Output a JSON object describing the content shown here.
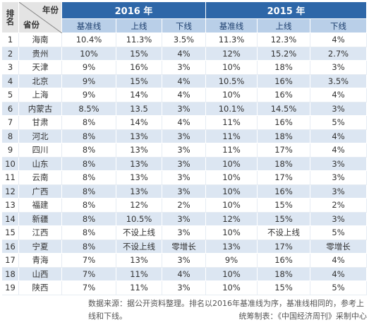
{
  "header": {
    "rank_label": "排名",
    "year_label": "年份",
    "province_label": "省份",
    "years": [
      "2016 年",
      "2015 年"
    ],
    "subheaders": [
      "基准线",
      "上线",
      "下线",
      "基准线",
      "上线",
      "下线"
    ]
  },
  "table": {
    "rows": [
      [
        1,
        "海南",
        "10.4%",
        "11.3%",
        "3.5%",
        "11.3%",
        "12.3%",
        "4%"
      ],
      [
        2,
        "贵州",
        "10%",
        "15%",
        "4%",
        "12%",
        "15.2%",
        "2.7%"
      ],
      [
        3,
        "天津",
        "9%",
        "16%",
        "3%",
        "10%",
        "18%",
        "3%"
      ],
      [
        4,
        "北京",
        "9%",
        "15%",
        "4%",
        "10.5%",
        "16%",
        "3.5%"
      ],
      [
        5,
        "上海",
        "9%",
        "14%",
        "4%",
        "10%",
        "16%",
        "4%"
      ],
      [
        6,
        "内蒙古",
        "8.5%",
        "13.5",
        "3%",
        "10.1%",
        "14.5%",
        "3%"
      ],
      [
        7,
        "甘肃",
        "8%",
        "14%",
        "4%",
        "11%",
        "16%",
        "5%"
      ],
      [
        8,
        "河北",
        "8%",
        "13%",
        "3%",
        "11%",
        "18%",
        "4%"
      ],
      [
        9,
        "四川",
        "8%",
        "13%",
        "3%",
        "11%",
        "17%",
        "4%"
      ],
      [
        10,
        "山东",
        "8%",
        "13%",
        "3%",
        "10%",
        "18%",
        "3%"
      ],
      [
        11,
        "云南",
        "8%",
        "13%",
        "3%",
        "10%",
        "17%",
        "3%"
      ],
      [
        12,
        "广西",
        "8%",
        "13%",
        "3%",
        "10%",
        "16%",
        "3%"
      ],
      [
        13,
        "福建",
        "8%",
        "12%",
        "2%",
        "10%",
        "15%",
        "2%"
      ],
      [
        14,
        "新疆",
        "8%",
        "10.5%",
        "3%",
        "12%",
        "15%",
        "3%"
      ],
      [
        15,
        "江西",
        "8%",
        "不设上线",
        "3%",
        "10%",
        "不设上线",
        "5%"
      ],
      [
        16,
        "宁夏",
        "8%",
        "不设上线",
        "零增长",
        "13%",
        "17%",
        "零增长"
      ],
      [
        17,
        "青海",
        "7%",
        "13%",
        "3%",
        "9%",
        "16%",
        "4%"
      ],
      [
        18,
        "山西",
        "7%",
        "11%",
        "4%",
        "10%",
        "18%",
        "4%"
      ],
      [
        19,
        "陕西",
        "7%",
        "11%",
        "3%",
        "10%",
        "15%",
        "5%"
      ]
    ]
  },
  "footer": {
    "source": "数据来源：据公开资料整理。排名以2016年基准线为序，基准线相同的，参考上线和下线。",
    "credit": "统筹制表：《中国经济周刊》采制中心"
  }
}
